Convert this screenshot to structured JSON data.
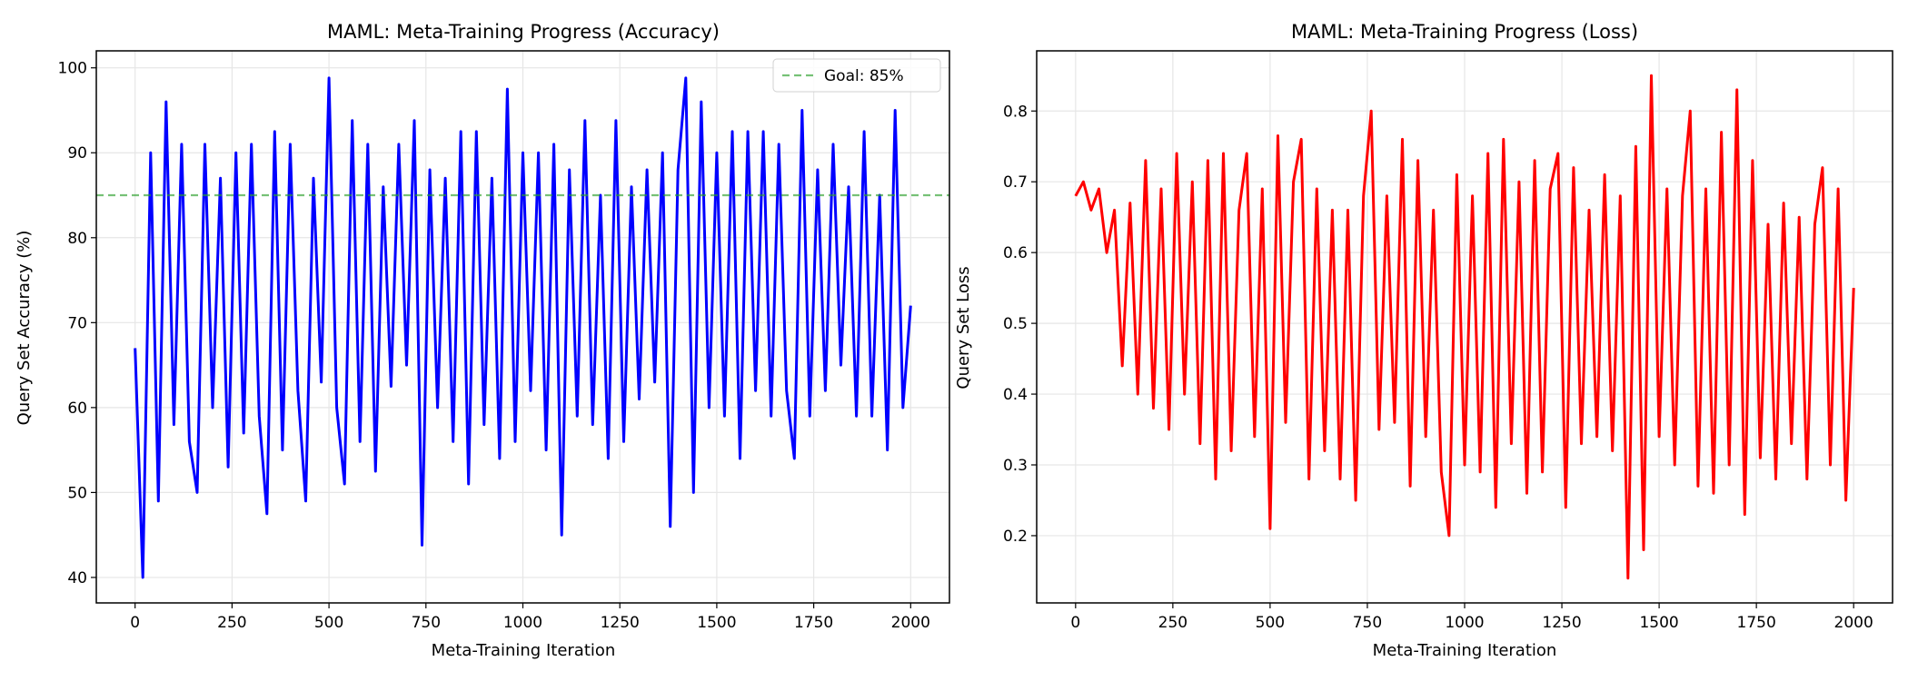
{
  "chart_data": [
    {
      "type": "line",
      "title": "MAML: Meta-Training Progress (Accuracy)",
      "xlabel": "Meta-Training Iteration",
      "ylabel": "Query Set Accuracy (%)",
      "xlim": [
        -100,
        2100
      ],
      "ylim": [
        37,
        102
      ],
      "xticks": [
        0,
        250,
        500,
        750,
        1000,
        1250,
        1500,
        1750,
        2000
      ],
      "yticks": [
        40,
        50,
        60,
        70,
        80,
        90,
        100
      ],
      "grid": true,
      "color": "#0000ff",
      "x_start": 0,
      "x_step": 20,
      "values": [
        67,
        40,
        90,
        49,
        96,
        58,
        91,
        56,
        50,
        91,
        60,
        87,
        53,
        90,
        57,
        91,
        59,
        47.5,
        92.5,
        55,
        91,
        62,
        49,
        87,
        63,
        98.8,
        60,
        51,
        93.8,
        56,
        91,
        52.5,
        86,
        62.5,
        91,
        65,
        93.8,
        43.8,
        88,
        60,
        87,
        56,
        92.5,
        51,
        92.5,
        58,
        87,
        54,
        97.5,
        56,
        90,
        62,
        90,
        55,
        91,
        45,
        88,
        59,
        93.8,
        58,
        85,
        54,
        93.8,
        56,
        86,
        61,
        88,
        63,
        90,
        46,
        88,
        98.8,
        50,
        96,
        60,
        90,
        59,
        92.5,
        54,
        92.5,
        62,
        92.5,
        59,
        91,
        62,
        54,
        95,
        59,
        88,
        62,
        91,
        65,
        86,
        59,
        92.5,
        59,
        85,
        55,
        95,
        60,
        72
      ],
      "reference_line": {
        "value": 85,
        "label": "Goal: 85%",
        "color": "#2ca02c",
        "style": "dashed"
      },
      "legend": {
        "position": "top-right",
        "entries": [
          "Goal: 85%"
        ]
      }
    },
    {
      "type": "line",
      "title": "MAML: Meta-Training Progress (Loss)",
      "xlabel": "Meta-Training Iteration",
      "ylabel": "Query Set Loss",
      "xlim": [
        -100,
        2100
      ],
      "ylim": [
        0.105,
        0.885
      ],
      "xticks": [
        0,
        250,
        500,
        750,
        1000,
        1250,
        1500,
        1750,
        2000
      ],
      "yticks": [
        0.2,
        0.3,
        0.4,
        0.5,
        0.6,
        0.7,
        0.8
      ],
      "grid": true,
      "color": "#ff0000",
      "x_start": 0,
      "x_step": 20,
      "values": [
        0.68,
        0.7,
        0.66,
        0.69,
        0.6,
        0.66,
        0.44,
        0.67,
        0.4,
        0.73,
        0.38,
        0.69,
        0.35,
        0.74,
        0.4,
        0.7,
        0.33,
        0.73,
        0.28,
        0.74,
        0.32,
        0.66,
        0.74,
        0.34,
        0.69,
        0.21,
        0.765,
        0.36,
        0.7,
        0.76,
        0.28,
        0.69,
        0.32,
        0.66,
        0.28,
        0.66,
        0.25,
        0.68,
        0.8,
        0.35,
        0.68,
        0.36,
        0.76,
        0.27,
        0.73,
        0.34,
        0.66,
        0.29,
        0.2,
        0.71,
        0.3,
        0.68,
        0.29,
        0.74,
        0.24,
        0.76,
        0.33,
        0.7,
        0.26,
        0.73,
        0.29,
        0.69,
        0.74,
        0.24,
        0.72,
        0.33,
        0.66,
        0.34,
        0.71,
        0.32,
        0.68,
        0.14,
        0.75,
        0.18,
        0.85,
        0.34,
        0.69,
        0.3,
        0.68,
        0.8,
        0.27,
        0.69,
        0.26,
        0.77,
        0.3,
        0.83,
        0.23,
        0.73,
        0.31,
        0.64,
        0.28,
        0.67,
        0.33,
        0.65,
        0.28,
        0.64,
        0.72,
        0.3,
        0.69,
        0.25,
        0.55
      ]
    }
  ]
}
